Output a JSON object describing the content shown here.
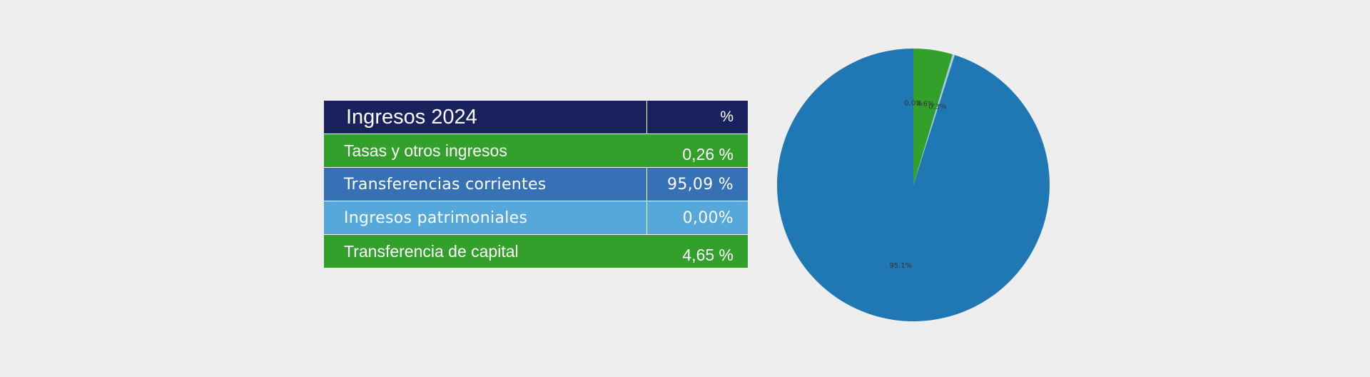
{
  "table": {
    "header": {
      "label": "Ingresos 2024",
      "value": "%"
    },
    "rows": [
      {
        "label": "Tasas y otros ingresos",
        "value": "0,26 %"
      },
      {
        "label": "Transferencias corrientes",
        "value": "95,09 %"
      },
      {
        "label": "Ingresos patrimoniales",
        "value": "0,00%"
      },
      {
        "label": "Transferencia de capital",
        "value": "4,65 %"
      }
    ]
  },
  "colors": {
    "header_bg": "#19225c",
    "tasas_bg": "#33a02c",
    "transferencias_corrientes_bg": "#3671b5",
    "patrimoniales_bg": "#56a8da",
    "capital_bg": "#33a02c"
  },
  "chart_data": {
    "type": "pie",
    "slices": [
      {
        "value": 95.09,
        "label": "95.1%",
        "color": "#1f77b4"
      },
      {
        "value": 0.26,
        "label": "0.3%",
        "color": "#a6cee3"
      },
      {
        "value": 4.65,
        "label": "4.6%",
        "color": "#33a02c"
      },
      {
        "value": 0.0,
        "label": "0.0%",
        "color": "#b2df8a"
      }
    ]
  }
}
